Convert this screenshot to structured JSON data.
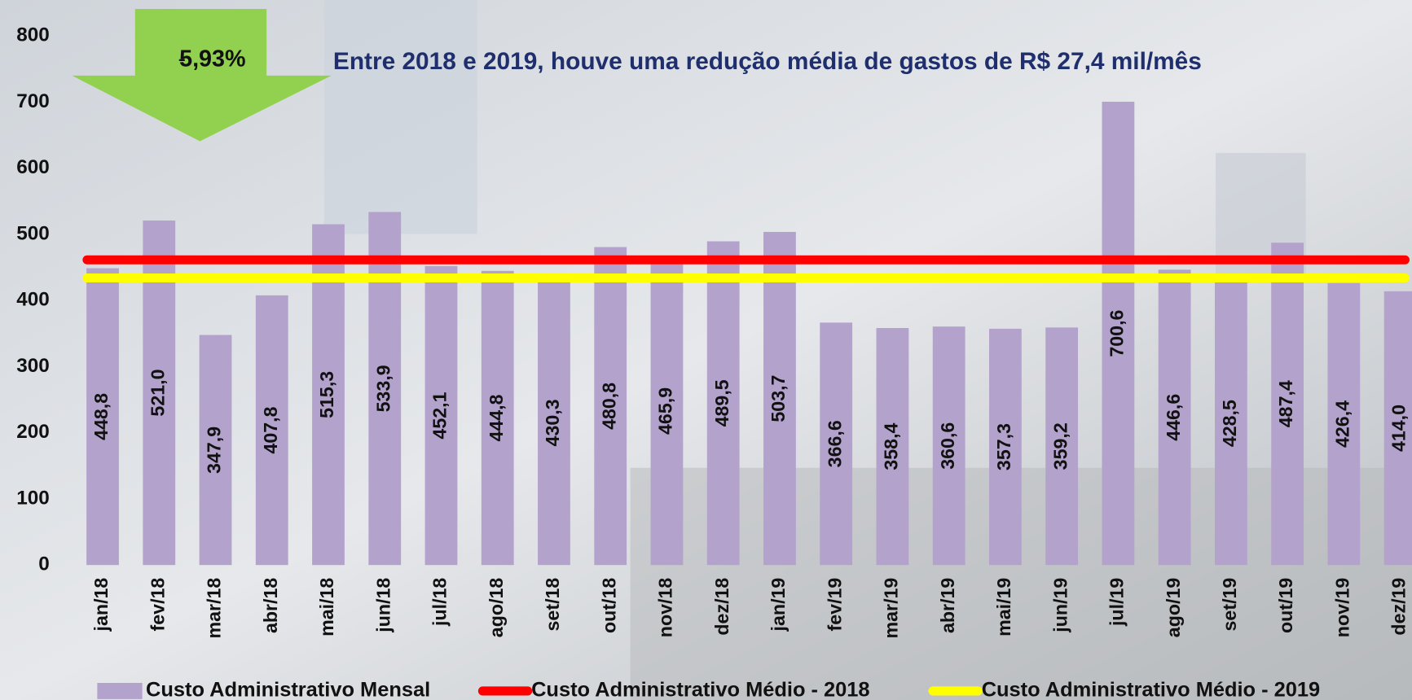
{
  "chart_data": {
    "type": "bar",
    "title": "Entre 2018 e 2019, houve uma redução média de gastos de R$ 27,4 mil/mês",
    "annotations": [
      "-",
      "5,93%"
    ],
    "categories": [
      "jan/18",
      "fev/18",
      "mar/18",
      "abr/18",
      "mai/18",
      "jun/18",
      "jul/18",
      "ago/18",
      "set/18",
      "out/18",
      "nov/18",
      "dez/18",
      "jan/19",
      "fev/19",
      "mar/19",
      "abr/19",
      "mai/19",
      "jun/19",
      "jul/19",
      "ago/19",
      "set/19",
      "out/19",
      "nov/19",
      "dez/19"
    ],
    "series": [
      {
        "name": "Custo Administrativo Mensal",
        "type": "bar",
        "color": "#b3a2cc",
        "values": [
          448.8,
          521.0,
          347.9,
          407.8,
          515.3,
          533.9,
          452.1,
          444.8,
          430.3,
          480.8,
          465.9,
          489.5,
          503.7,
          366.6,
          358.4,
          360.6,
          357.3,
          359.2,
          700.6,
          446.6,
          428.5,
          487.4,
          426.4,
          414.0
        ],
        "value_labels": [
          "448,8",
          "521,0",
          "347,9",
          "407,8",
          "515,3",
          "533,9",
          "452,1",
          "444,8",
          "430,3",
          "480,8",
          "465,9",
          "489,5",
          "503,7",
          "366,6",
          "358,4",
          "360,6",
          "357,3",
          "359,2",
          "700,6",
          "446,6",
          "428,5",
          "487,4",
          "426,4",
          "414,0"
        ]
      },
      {
        "name": "Custo Administrativo Médio - 2018",
        "type": "line",
        "color": "#ff0000",
        "values": [
          461.5,
          461.5,
          461.5,
          461.5,
          461.5,
          461.5,
          461.5,
          461.5,
          461.5,
          461.5,
          461.5,
          461.5,
          461.5,
          461.5,
          461.5,
          461.5,
          461.5,
          461.5,
          461.5,
          461.5,
          461.5,
          461.5,
          461.5,
          461.5
        ]
      },
      {
        "name": "Custo Administrativo Médio - 2019",
        "type": "line",
        "color": "#ffff00",
        "values": [
          434.1,
          434.1,
          434.1,
          434.1,
          434.1,
          434.1,
          434.1,
          434.1,
          434.1,
          434.1,
          434.1,
          434.1,
          434.1,
          434.1,
          434.1,
          434.1,
          434.1,
          434.1,
          434.1,
          434.1,
          434.1,
          434.1,
          434.1,
          434.1
        ]
      }
    ],
    "ylim": [
      0,
      800
    ],
    "yticks": [
      0,
      100,
      200,
      300,
      400,
      500,
      600,
      700,
      800
    ],
    "annotation_color": "#92d050",
    "title_color": "#1f2f6e",
    "grid": false,
    "legend": "bottom"
  }
}
